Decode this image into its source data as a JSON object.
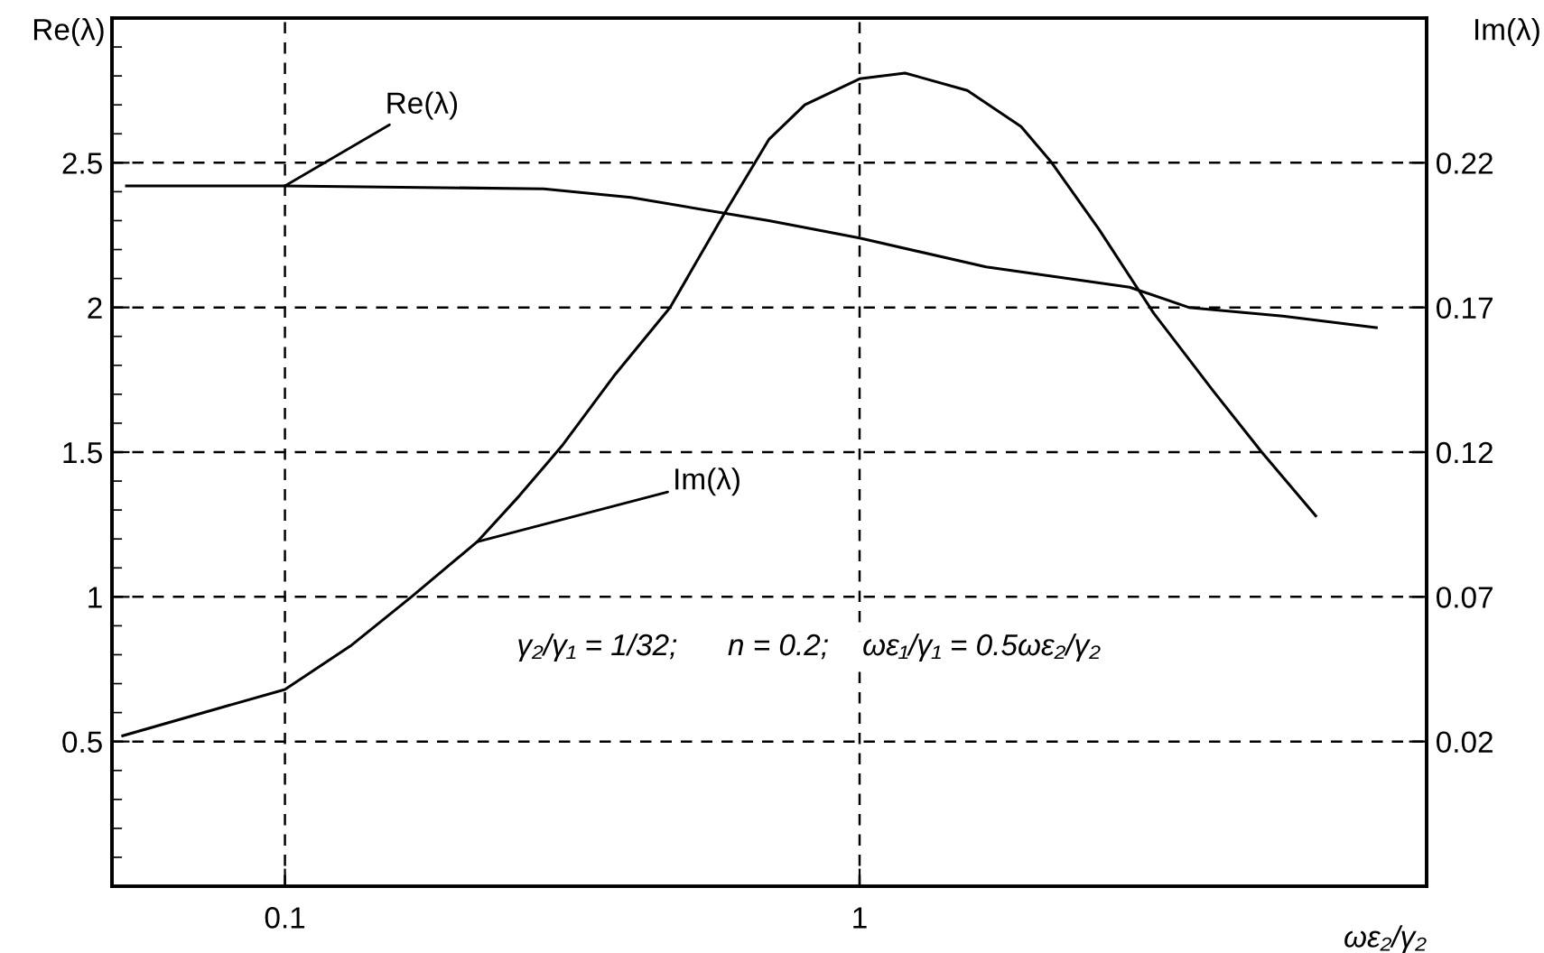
{
  "chart_data": {
    "type": "line",
    "xlabel": "ωε₂/γ₂",
    "ylabel": "Re(λ)",
    "y2label": "Im(λ)",
    "log": "x",
    "grid": true,
    "line_style": "solid",
    "marker": "none",
    "xlim": [
      0.05,
      9.7
    ],
    "xticks": [
      0.1,
      1
    ],
    "ylim": [
      0,
      3
    ],
    "yticks": [
      0.5,
      1,
      1.5,
      2,
      2.5
    ],
    "y2lim": [
      -0.03,
      0.27
    ],
    "y2ticks": [
      0.02,
      0.07,
      0.12,
      0.17,
      0.22
    ],
    "series": [
      {
        "color": "#000000",
        "x": [
          0.053,
          0.1,
          0.282,
          0.4,
          0.695,
          1.0,
          1.66,
          2.95,
          3.74,
          5.45,
          7.93
        ],
        "values": [
          2.42,
          2.42,
          2.41,
          2.38,
          2.3,
          2.24,
          2.14,
          2.07,
          2.0,
          1.97,
          1.93
        ]
      },
      {
        "color": "#000000",
        "axis": "y2",
        "x": [
          0.0522,
          0.1,
          0.13,
          0.166,
          0.216,
          0.256,
          0.303,
          0.376,
          0.468,
          0.58,
          0.695,
          0.803,
          1.0,
          1.2,
          1.54,
          1.91,
          2.16,
          2.61,
          3.25,
          4.13,
          5.01,
          6.22
        ],
        "values": [
          0.022,
          0.038,
          0.053,
          0.07,
          0.089,
          0.105,
          0.122,
          0.147,
          0.17,
          0.202,
          0.228,
          0.24,
          0.249,
          0.251,
          0.245,
          0.2325,
          0.22,
          0.197,
          0.168,
          0.141,
          0.12,
          0.098
        ]
      }
    ],
    "annotations": [
      {
        "text": "Re(λ)",
        "x": 0.1,
        "y": 2.42
      },
      {
        "text": "Im(λ)",
        "x": 0.216,
        "y": 1.19
      },
      "γ₂/γ₁ = 1/32;      n = 0.2;    ωε₁/γ₁ = 0.5ωε₂/γ₂"
    ]
  }
}
